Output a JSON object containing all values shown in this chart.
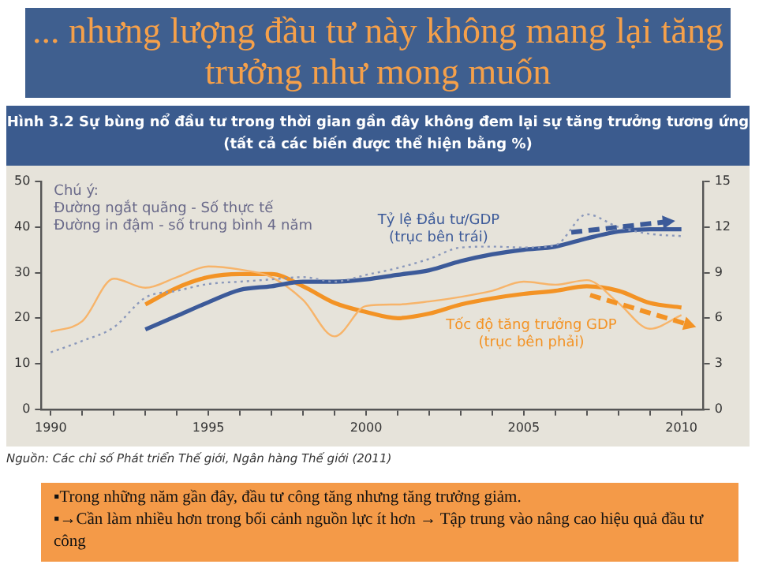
{
  "chart_data": {
    "type": "line",
    "title": "... nhưng lượng đầu tư này không mang lại tăng trưởng như mong muốn",
    "subtitle": "Hình 3.2 Sự bùng nổ đầu tư trong thời gian gần đây không đem lại sự tăng trưởng tương ứng (tất cả các biến được thể hiện bằng %)",
    "series": [
      {
        "color": "#8a98bb",
        "line_style": "dotted",
        "x": [
          1990,
          1991,
          1992,
          1993,
          1994,
          1995,
          1996,
          1997,
          1998,
          1999,
          2000,
          2001,
          2002,
          2003,
          2004,
          2005,
          2006,
          2007,
          2008,
          2009,
          2010
        ],
        "values": [
          12.5,
          15,
          18,
          24.5,
          26,
          27.5,
          28,
          28.5,
          29,
          28,
          29.5,
          31,
          33,
          35.5,
          35.7,
          35.5,
          36,
          42.8,
          40,
          38.5,
          38
        ]
      },
      {
        "color": "#3c5a99",
        "line_style": "solid",
        "x": [
          1993,
          1994,
          1995,
          1996,
          1997,
          1998,
          1999,
          2000,
          2001,
          2002,
          2003,
          2004,
          2005,
          2006,
          2007,
          2008,
          2009,
          2010
        ],
        "values": [
          17.5,
          20.5,
          23.5,
          26.2,
          27,
          28,
          28,
          28.5,
          29.5,
          30.5,
          32.5,
          34,
          35,
          35.7,
          37.5,
          39,
          39.5,
          39.5
        ]
      },
      {
        "color": "#f7b46a",
        "line_style": "solid",
        "axis": "y2",
        "x": [
          1990,
          1991,
          1992,
          1993,
          1994,
          1995,
          1996,
          1997,
          1998,
          1999,
          2000,
          2001,
          2002,
          2003,
          2004,
          2005,
          2006,
          2007,
          2008,
          2009,
          2010
        ],
        "values": [
          5.1,
          5.8,
          8.6,
          8,
          8.7,
          9.4,
          9.2,
          8.7,
          7.2,
          4.8,
          6.8,
          6.9,
          7.1,
          7.4,
          7.8,
          8.4,
          8.2,
          8.5,
          7,
          5.3,
          6.2
        ]
      },
      {
        "color": "#f39325",
        "line_style": "solid",
        "axis": "y2",
        "x": [
          1993,
          1994,
          1995,
          1996,
          1997,
          1998,
          1999,
          2000,
          2001,
          2002,
          2003,
          2004,
          2005,
          2006,
          2007,
          2008,
          2009,
          2010
        ],
        "values": [
          6.9,
          8,
          8.7,
          8.9,
          8.9,
          8.1,
          7,
          6.4,
          6,
          6.3,
          6.9,
          7.3,
          7.6,
          7.8,
          8.1,
          7.8,
          7,
          6.7
        ]
      }
    ],
    "xlim": [
      1989.7,
      2010.7
    ],
    "xticks": [
      1990,
      {
        "value": 1991,
        "label": null
      },
      {
        "value": 1992,
        "label": null
      },
      {
        "value": 1993,
        "label": null
      },
      {
        "value": 1994,
        "label": null
      },
      1995,
      {
        "value": 1996,
        "label": null
      },
      {
        "value": 1997,
        "label": null
      },
      {
        "value": 1998,
        "label": null
      },
      {
        "value": 1999,
        "label": null
      },
      2000,
      {
        "value": 2001,
        "label": null
      },
      {
        "value": 2002,
        "label": null
      },
      {
        "value": 2003,
        "label": null
      },
      {
        "value": 2004,
        "label": null
      },
      2005,
      {
        "value": 2006,
        "label": null
      },
      {
        "value": 2007,
        "label": null
      },
      {
        "value": 2008,
        "label": null
      },
      {
        "value": 2009,
        "label": null
      },
      2010
    ],
    "ylim": [
      0,
      50
    ],
    "yticks": [
      0,
      10,
      20,
      30,
      40,
      50
    ],
    "y2lim": [
      0,
      15
    ],
    "y2ticks": [
      0,
      3,
      6,
      9,
      12,
      15
    ],
    "grid": false,
    "legend": false,
    "marker": "none",
    "annotations": [
      "Chú ý:",
      "Đường ngắt quãng - Số thực tế",
      "Đường in đậm - số trung bình 4 năm",
      "Tỷ lệ Đầu tư/GDP\n(trục bên trái)",
      "Tốc độ tăng trưởng GDP\n(trục bên phải)",
      "Nguồn: Các chỉ số Phát triển Thế giới, Ngân hàng Thế giới (2011)",
      "▪Trong những năm gần đây, đầu tư công tăng nhưng tăng trưởng giảm.",
      "▪→Cần làm nhiều hơn trong bối cảnh nguồn lực ít hơn → Tập trung vào nâng cao hiệu quả đầu tư công"
    ]
  }
}
